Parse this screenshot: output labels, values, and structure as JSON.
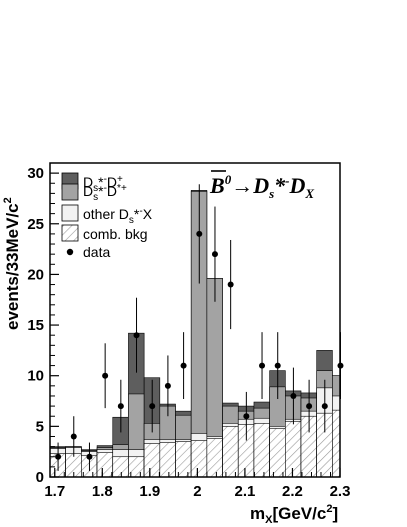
{
  "chart_data": {
    "type": "bar",
    "stacked": true,
    "title": "",
    "xlabel": "m_X[GeV/c^2]",
    "ylabel": "events/33MeV/c^2",
    "xlim": [
      1.69,
      2.3
    ],
    "ylim": [
      0,
      31
    ],
    "x_ticks": [
      "1.7",
      "1.8",
      "1.9",
      "2",
      "2.1",
      "2.2",
      "2.3"
    ],
    "y_ticks": [
      "0",
      "5",
      "10",
      "15",
      "20",
      "25",
      "30"
    ],
    "bin_width": 0.033,
    "bin_lower_edges": [
      1.69,
      1.723,
      1.756,
      1.789,
      1.822,
      1.855,
      1.888,
      1.921,
      1.954,
      1.987,
      2.02,
      2.053,
      2.086,
      2.119,
      2.152,
      2.185,
      2.218,
      2.251,
      2.284
    ],
    "stack_tops": {
      "comb_bkg": [
        2.3,
        2.3,
        2.1,
        2.4,
        2.0,
        2.0,
        3.3,
        3.4,
        3.5,
        3.6,
        3.8,
        5.0,
        5.2,
        5.3,
        4.8,
        5.5,
        6.0,
        6.3,
        6.6
      ],
      "other": [
        2.8,
        2.9,
        2.5,
        2.7,
        2.7,
        2.7,
        3.7,
        3.7,
        3.7,
        4.3,
        4.0,
        5.3,
        5.7,
        5.8,
        5.0,
        5.7,
        6.5,
        8.8,
        8.0
      ],
      "ds_dstar": [
        2.9,
        3.0,
        2.6,
        2.9,
        3.2,
        8.2,
        5.3,
        7.0,
        6.1,
        28.2,
        19.6,
        7.0,
        6.5,
        6.8,
        8.9,
        8.0,
        7.8,
        10.5,
        10.0
      ],
      "ds_d": [
        3.0,
        3.0,
        2.7,
        3.1,
        5.9,
        14.2,
        9.8,
        7.2,
        6.5,
        28.3,
        19.6,
        7.3,
        7.0,
        7.4,
        10.5,
        8.5,
        8.3,
        12.5,
        10.0
      ]
    },
    "data_points": {
      "x": [
        1.707,
        1.74,
        1.773,
        1.806,
        1.839,
        1.872,
        1.905,
        1.938,
        1.971,
        2.004,
        2.037,
        2.07,
        2.103,
        2.136,
        2.169,
        2.202,
        2.235,
        2.268,
        2.301
      ],
      "y": [
        2,
        4,
        2,
        10,
        7,
        14,
        7,
        9,
        11,
        24,
        22,
        19,
        6,
        11,
        11,
        8,
        7,
        7,
        11
      ],
      "err": [
        1.4,
        2.0,
        1.4,
        3.2,
        2.6,
        3.7,
        2.6,
        3.0,
        3.3,
        4.9,
        4.7,
        4.4,
        2.4,
        3.3,
        3.3,
        2.8,
        2.6,
        2.6,
        3.3
      ]
    },
    "legend_placement": "top-left",
    "legend": [
      {
        "key": "ds_d",
        "label": "Ds*-D+",
        "color": "#5e5e5e"
      },
      {
        "key": "ds_dstar",
        "label": "Ds*-D*+",
        "color": "#a3a3a3"
      },
      {
        "key": "other",
        "label": "other Ds*-X",
        "color": "#f2f2f2"
      },
      {
        "key": "comb_bkg",
        "label": "comb. bkg",
        "color": "hatched"
      },
      {
        "key": "data",
        "label": "data",
        "color": "#000000"
      }
    ],
    "annotation": "B0 → Ds*-DX"
  }
}
